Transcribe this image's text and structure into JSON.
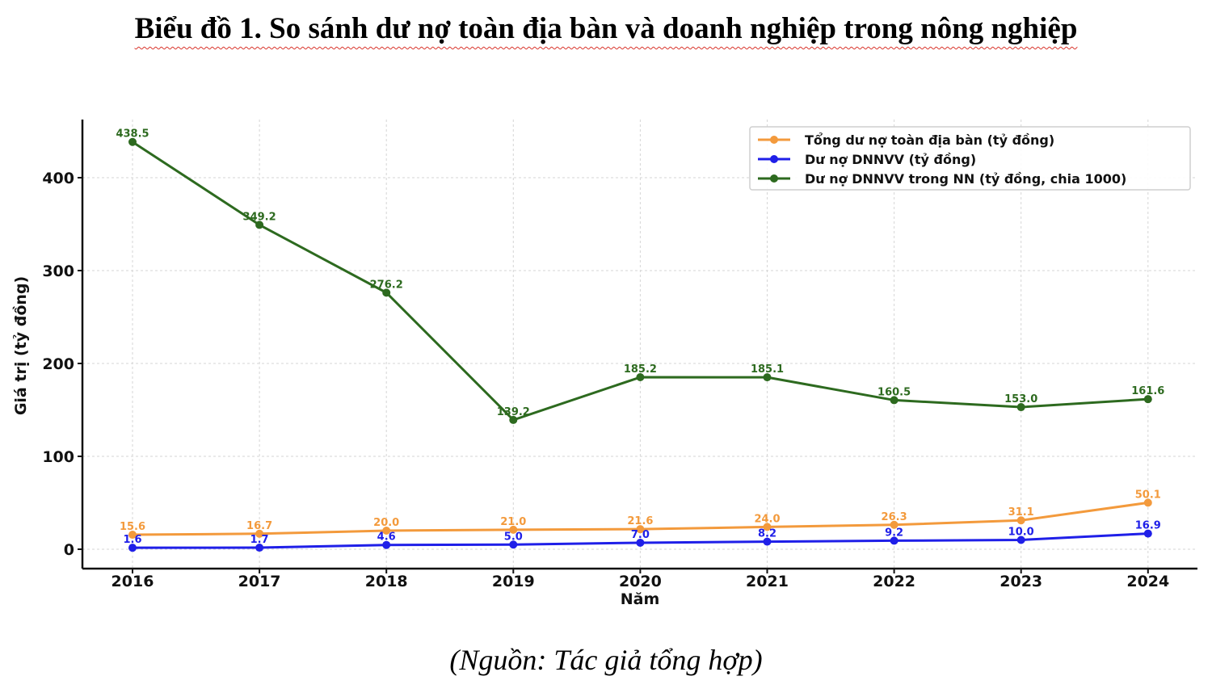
{
  "title": "Biểu đồ 1. So sánh dư nợ toàn địa bàn và doanh nghiệp trong nông nghiệp",
  "source": "(Nguồn: Tác giả tổng hợp)",
  "chart_data": {
    "type": "line",
    "xlabel": "Năm",
    "ylabel": "Giá trị (tỷ đồng)",
    "x": [
      "2016",
      "2017",
      "2018",
      "2019",
      "2020",
      "2021",
      "2022",
      "2023",
      "2024"
    ],
    "ylim": [
      -20,
      460
    ],
    "yticks": [
      0,
      100,
      200,
      300,
      400
    ],
    "grid": true,
    "legend_position": "top-right",
    "series": [
      {
        "name": "Tổng dư nợ toàn địa bàn (tỷ đồng)",
        "color": "#f39a3c",
        "values": [
          15.6,
          16.7,
          20.0,
          21.0,
          21.6,
          24.0,
          26.3,
          31.1,
          50.1
        ],
        "labels": [
          "15.6",
          "16.7",
          "20.0",
          "21.0",
          "21.6",
          "24.0",
          "26.3",
          "31.1",
          "50.1"
        ]
      },
      {
        "name": "Dư nợ DNNVV (tỷ đồng)",
        "color": "#1f1fe8",
        "values": [
          1.6,
          1.7,
          4.6,
          5.0,
          7.0,
          8.2,
          9.2,
          10.0,
          16.9
        ],
        "labels": [
          "1.6",
          "1.7",
          "4.6",
          "5.0",
          "7.0",
          "8.2",
          "9.2",
          "10.0",
          "16.9"
        ]
      },
      {
        "name": "Dư nợ DNNVV trong NN (tỷ đồng, chia 1000)",
        "color": "#2d6a1f",
        "values": [
          438.5,
          349.2,
          276.2,
          139.2,
          185.2,
          185.1,
          160.5,
          153.0,
          161.6
        ],
        "labels": [
          "438.5",
          "349.2",
          "276.2",
          "139.2",
          "185.2",
          "185.1",
          "160.5",
          "153.0",
          "161.6"
        ]
      }
    ]
  }
}
